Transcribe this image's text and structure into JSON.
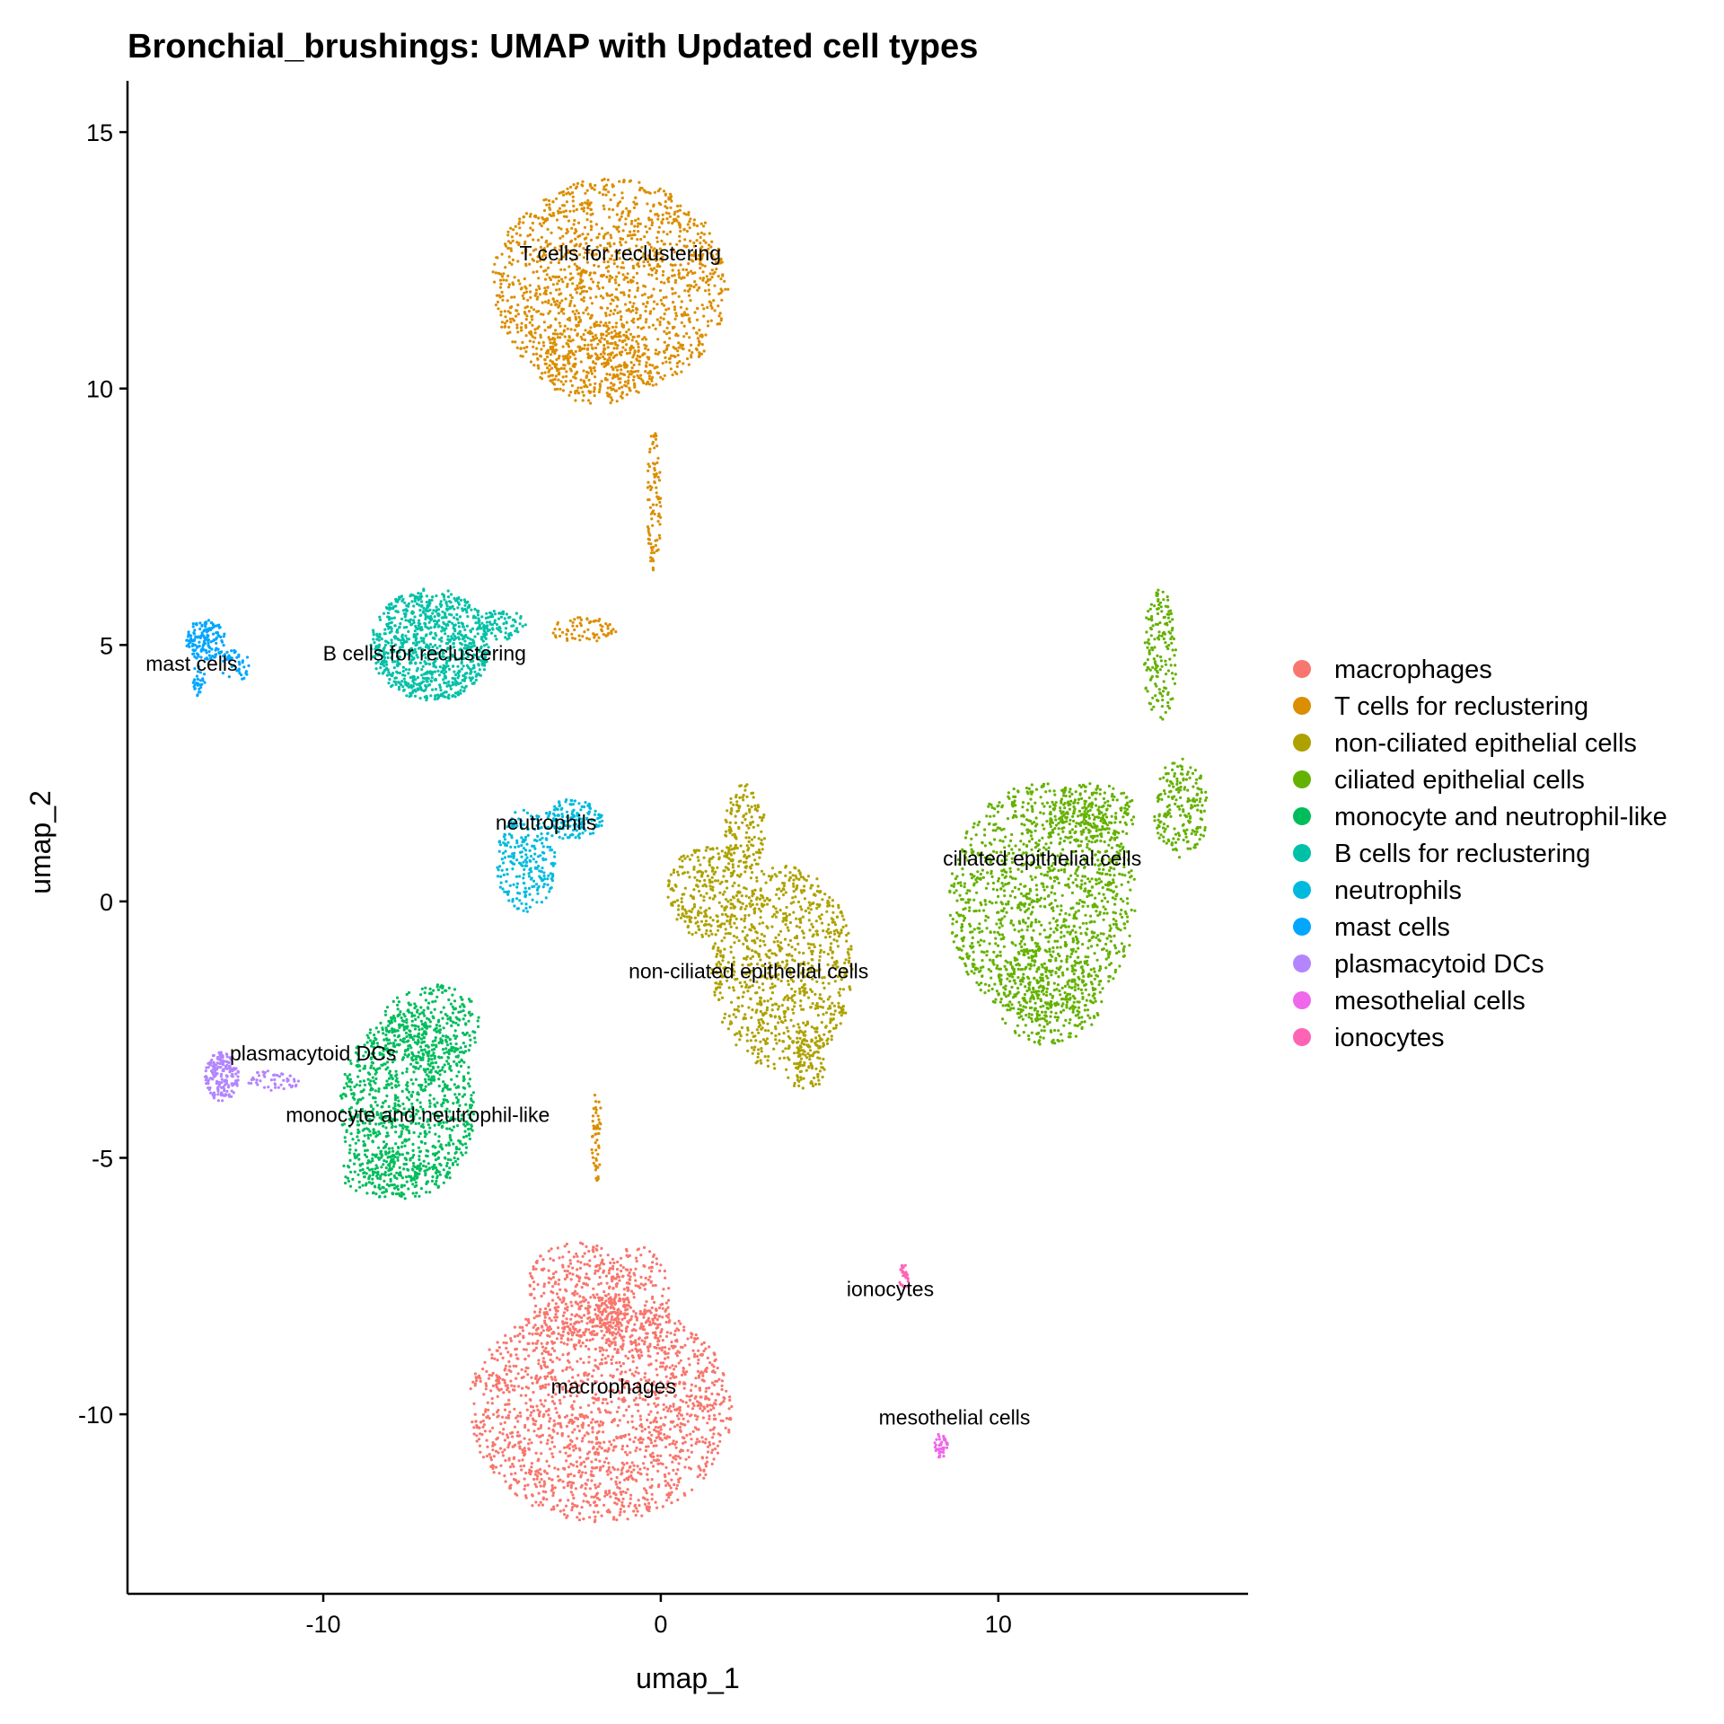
{
  "chart_data": {
    "type": "scatter",
    "title": "Bronchial_brushings: UMAP with Updated cell types",
    "xlabel": "umap_1",
    "ylabel": "umap_2",
    "xlim": [
      -15.8,
      17.4
    ],
    "ylim": [
      -13.5,
      16.0
    ],
    "xticks": [
      -10,
      0,
      10
    ],
    "yticks": [
      -10,
      -5,
      0,
      5,
      10,
      15
    ],
    "xtick_labels": [
      "-10",
      "0",
      "10"
    ],
    "ytick_labels": [
      "-10",
      "-5",
      "0",
      "5",
      "10",
      "15"
    ],
    "grid": false,
    "legend_position": "right",
    "series": [
      {
        "name": "macrophages",
        "color": "#F8766D",
        "label": "macrophages",
        "label_pos": [
          -1.4,
          -9.6
        ],
        "clusters": [
          {
            "cx": -1.8,
            "cy": -9.9,
            "rx": 3.9,
            "ry": 2.2,
            "n": 1800
          },
          {
            "cx": -2.4,
            "cy": -7.6,
            "rx": 1.6,
            "ry": 1.0,
            "n": 300
          },
          {
            "cx": -0.8,
            "cy": -7.8,
            "rx": 1.1,
            "ry": 1.1,
            "n": 220
          }
        ]
      },
      {
        "name": "T cells for reclustering",
        "color": "#DB8E00",
        "label": "T cells for reclustering",
        "label_pos": [
          -1.2,
          12.5
        ],
        "clusters": [
          {
            "cx": -1.5,
            "cy": 12.0,
            "rx": 3.5,
            "ry": 2.1,
            "n": 1500
          },
          {
            "cx": -1.9,
            "cy": 10.5,
            "rx": 1.8,
            "ry": 0.8,
            "n": 250
          },
          {
            "cx": -0.2,
            "cy": 7.8,
            "rx": 0.2,
            "ry": 1.4,
            "n": 90
          },
          {
            "cx": -2.3,
            "cy": 5.3,
            "rx": 1.0,
            "ry": 0.25,
            "n": 70
          },
          {
            "cx": -1.9,
            "cy": -4.6,
            "rx": 0.15,
            "ry": 0.9,
            "n": 50
          }
        ]
      },
      {
        "name": "non-ciliated epithelial cells",
        "color": "#AEA200",
        "label": "non-ciliated epithelial cells",
        "label_pos": [
          2.6,
          -1.5
        ],
        "clusters": [
          {
            "cx": 3.6,
            "cy": -1.3,
            "rx": 2.1,
            "ry": 2.0,
            "n": 900
          },
          {
            "cx": 1.3,
            "cy": 0.2,
            "rx": 1.1,
            "ry": 0.9,
            "n": 250
          },
          {
            "cx": 2.5,
            "cy": 1.4,
            "rx": 0.6,
            "ry": 0.9,
            "n": 150
          },
          {
            "cx": 4.3,
            "cy": -3.2,
            "rx": 0.6,
            "ry": 0.5,
            "n": 80
          }
        ]
      },
      {
        "name": "ciliated epithelial cells",
        "color": "#64B200",
        "label": "ciliated epithelial cells",
        "label_pos": [
          11.3,
          0.7
        ],
        "clusters": [
          {
            "cx": 11.3,
            "cy": 0.0,
            "rx": 2.8,
            "ry": 2.3,
            "n": 1300
          },
          {
            "cx": 11.5,
            "cy": -1.8,
            "rx": 1.6,
            "ry": 1.0,
            "n": 300
          },
          {
            "cx": 15.4,
            "cy": 1.8,
            "rx": 0.8,
            "ry": 1.0,
            "n": 200
          },
          {
            "cx": 14.8,
            "cy": 4.8,
            "rx": 0.5,
            "ry": 1.3,
            "n": 160
          },
          {
            "cx": 12.8,
            "cy": 1.7,
            "rx": 1.3,
            "ry": 0.6,
            "n": 200
          }
        ]
      },
      {
        "name": "monocyte and neutrophil-like",
        "color": "#00BD5C",
        "label": "monocyte and neutrophil-like",
        "label_pos": [
          -7.2,
          -4.3
        ],
        "clusters": [
          {
            "cx": -7.5,
            "cy": -4.0,
            "rx": 2.0,
            "ry": 1.8,
            "n": 1000
          },
          {
            "cx": -6.8,
            "cy": -2.4,
            "rx": 1.5,
            "ry": 0.8,
            "n": 250
          },
          {
            "cx": -8.3,
            "cy": -5.3,
            "rx": 1.2,
            "ry": 0.5,
            "n": 120
          }
        ]
      },
      {
        "name": "B cells for reclustering",
        "color": "#00C1A7",
        "label": "B cells for reclustering",
        "label_pos": [
          -7.0,
          4.7
        ],
        "clusters": [
          {
            "cx": -6.8,
            "cy": 5.0,
            "rx": 1.8,
            "ry": 1.1,
            "n": 900
          },
          {
            "cx": -4.7,
            "cy": 5.4,
            "rx": 0.7,
            "ry": 0.3,
            "n": 80
          }
        ]
      },
      {
        "name": "neutrophils",
        "color": "#00BADE",
        "label": "neutrophils",
        "label_pos": [
          -3.4,
          1.4
        ],
        "clusters": [
          {
            "cx": -4.0,
            "cy": 0.8,
            "rx": 0.9,
            "ry": 1.0,
            "n": 250
          },
          {
            "cx": -2.6,
            "cy": 1.6,
            "rx": 0.9,
            "ry": 0.4,
            "n": 150
          }
        ]
      },
      {
        "name": "mast cells",
        "color": "#00A6FF",
        "label": "mast cells",
        "label_pos": [
          -13.9,
          4.5
        ],
        "clusters": [
          {
            "cx": -13.5,
            "cy": 5.1,
            "rx": 0.6,
            "ry": 0.4,
            "n": 150
          },
          {
            "cx": -12.6,
            "cy": 4.6,
            "rx": 0.5,
            "ry": 0.3,
            "n": 40
          },
          {
            "cx": -13.7,
            "cy": 4.3,
            "rx": 0.2,
            "ry": 0.3,
            "n": 30
          }
        ]
      },
      {
        "name": "plasmacytoid DCs",
        "color": "#B385FF",
        "label": "plasmacytoid DCs",
        "label_pos": [
          -10.3,
          -3.1
        ],
        "clusters": [
          {
            "cx": -13.0,
            "cy": -3.4,
            "rx": 0.5,
            "ry": 0.5,
            "n": 170
          },
          {
            "cx": -11.5,
            "cy": -3.5,
            "rx": 0.8,
            "ry": 0.2,
            "n": 50
          }
        ]
      },
      {
        "name": "mesothelial cells",
        "color": "#EF67EB",
        "label": "mesothelial cells",
        "label_pos": [
          8.7,
          -10.2
        ],
        "clusters": [
          {
            "cx": 8.3,
            "cy": -10.6,
            "rx": 0.2,
            "ry": 0.25,
            "n": 40
          }
        ]
      },
      {
        "name": "ionocytes",
        "color": "#FF63B6",
        "label": "ionocytes",
        "label_pos": [
          6.8,
          -7.7
        ],
        "clusters": [
          {
            "cx": 7.2,
            "cy": -7.3,
            "rx": 0.15,
            "ry": 0.25,
            "n": 25
          }
        ]
      }
    ]
  }
}
